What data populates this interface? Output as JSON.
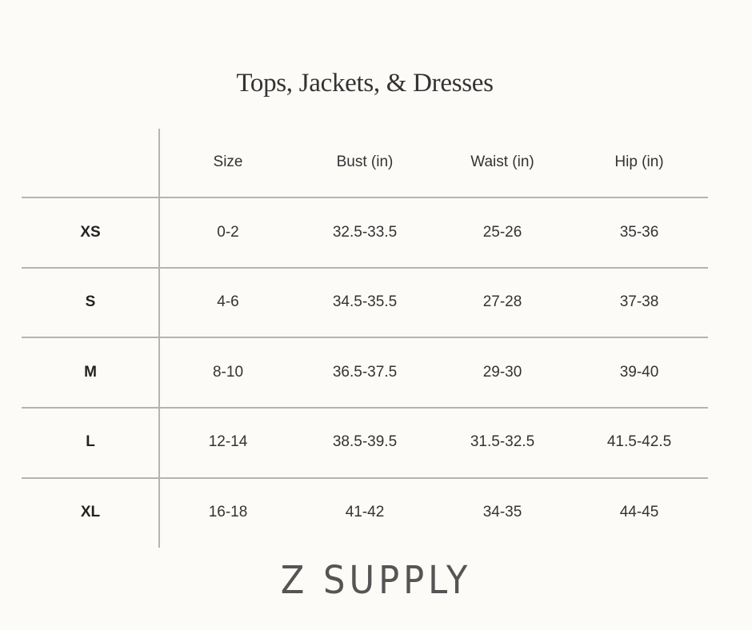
{
  "title": "Tops, Jackets, & Dresses",
  "table": {
    "headers": [
      "",
      "Size",
      "Bust (in)",
      "Waist (in)",
      "Hip (in)"
    ],
    "rows": [
      {
        "label": "XS",
        "size": "0-2",
        "bust": "32.5-33.5",
        "waist": "25-26",
        "hip": "35-36"
      },
      {
        "label": "S",
        "size": "4-6",
        "bust": "34.5-35.5",
        "waist": "27-28",
        "hip": "37-38"
      },
      {
        "label": "M",
        "size": "8-10",
        "bust": "36.5-37.5",
        "waist": "29-30",
        "hip": "39-40"
      },
      {
        "label": "L",
        "size": "12-14",
        "bust": "38.5-39.5",
        "waist": "31.5-32.5",
        "hip": "41.5-42.5"
      },
      {
        "label": "XL",
        "size": "16-18",
        "bust": "41-42",
        "waist": "34-35",
        "hip": "44-45"
      }
    ]
  },
  "brand": "Z SUPPLY",
  "colors": {
    "background": "#fcfbf8",
    "rule": "#b4b4b4",
    "text": "#333333"
  }
}
